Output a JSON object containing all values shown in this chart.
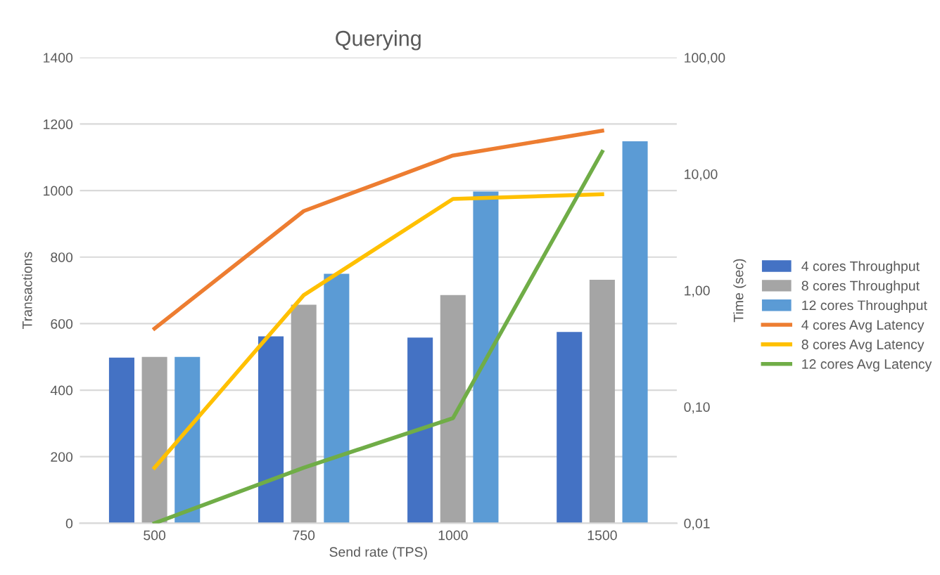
{
  "chart_data": {
    "type": "bar",
    "title": "Querying",
    "xlabel": "Send rate (TPS)",
    "ylabel": "Transactions",
    "y2label": "Time (sec)",
    "categories": [
      "500",
      "750",
      "1000",
      "1500"
    ],
    "series": [
      {
        "name": "4 cores Throughput",
        "color": "#4472c4",
        "values": [
          498,
          562,
          558,
          575
        ]
      },
      {
        "name": "8 cores Throughput",
        "color": "#a5a5a5",
        "values": [
          500,
          657,
          686,
          732
        ]
      },
      {
        "name": "12 cores Throughput",
        "color": "#5b9bd5",
        "values": [
          500,
          750,
          997,
          1148
        ]
      },
      {
        "name": "4 cores Avg Latency",
        "color": "#ed7d31",
        "type": "line",
        "axis": "y2",
        "values": [
          0.47,
          4.8,
          14.4,
          23.5
        ]
      },
      {
        "name": "8 cores Avg Latency",
        "color": "#ffc000",
        "type": "line",
        "axis": "y2",
        "values": [
          0.03,
          0.91,
          6.1,
          6.7
        ]
      },
      {
        "name": "12 cores Avg Latency",
        "color": "#70ad47",
        "type": "line",
        "axis": "y2",
        "values": [
          0.01,
          0.03,
          0.08,
          15.5
        ]
      }
    ],
    "ylim": [
      0,
      1400
    ],
    "yticks": [
      0,
      200,
      400,
      600,
      800,
      1000,
      1200,
      1400
    ],
    "y2lim": [
      0.01,
      100
    ],
    "y2ticks": [
      {
        "value": 0.01,
        "label": "0,01"
      },
      {
        "value": 0.1,
        "label": "0,10"
      },
      {
        "value": 1,
        "label": "1,00"
      },
      {
        "value": 10,
        "label": "10,00"
      },
      {
        "value": 100,
        "label": "100,00"
      }
    ],
    "log": "y2",
    "grid": "y",
    "legend": "right",
    "line_style": "solid",
    "marker": "none"
  }
}
